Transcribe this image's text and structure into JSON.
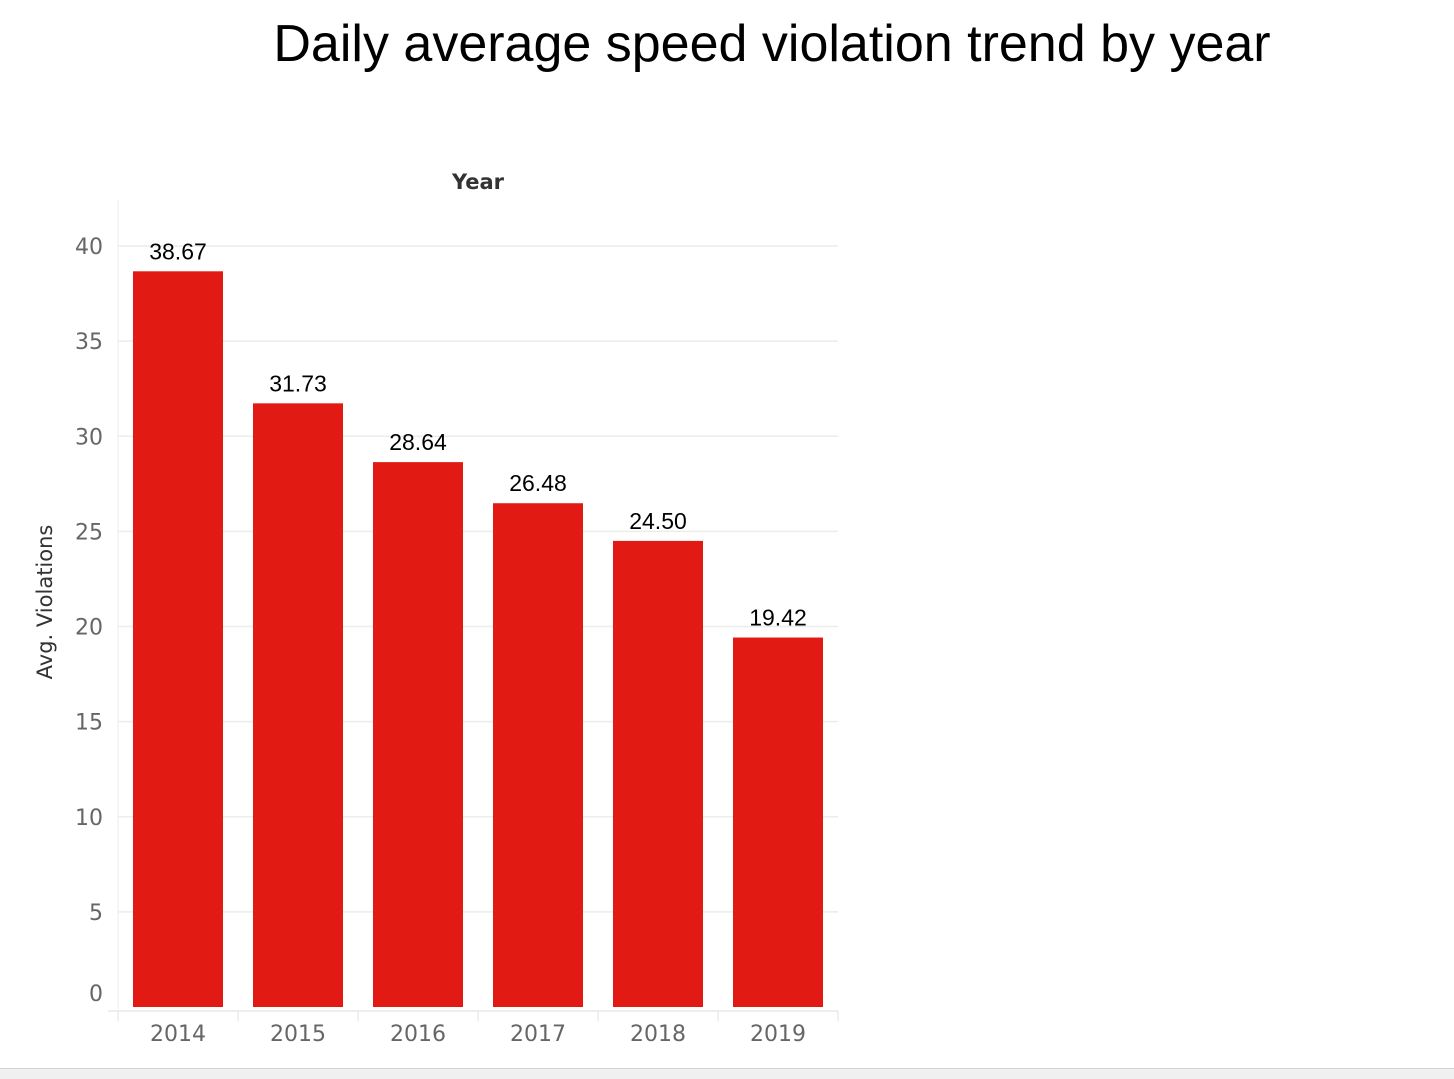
{
  "title": "Daily average speed violation trend by year",
  "chart_data": {
    "type": "bar",
    "title": "Daily average speed violation trend by year",
    "column_header": "Year",
    "xlabel": "",
    "ylabel": "Avg. Violations",
    "categories": [
      "2014",
      "2015",
      "2016",
      "2017",
      "2018",
      "2019"
    ],
    "values": [
      38.67,
      31.73,
      28.64,
      26.48,
      24.5,
      19.42
    ],
    "data_labels": [
      "38.67",
      "31.73",
      "28.64",
      "26.48",
      "24.50",
      "19.42"
    ],
    "ylim": [
      0,
      40
    ],
    "yticks": [
      0,
      5,
      10,
      15,
      20,
      25,
      30,
      35,
      40
    ],
    "ytick_labels": [
      "0",
      "5",
      "10",
      "15",
      "20",
      "25",
      "30",
      "35",
      "40"
    ],
    "grid": true,
    "legend": "none",
    "bar_color": "#e11a14",
    "grid_color": "#ececec"
  }
}
